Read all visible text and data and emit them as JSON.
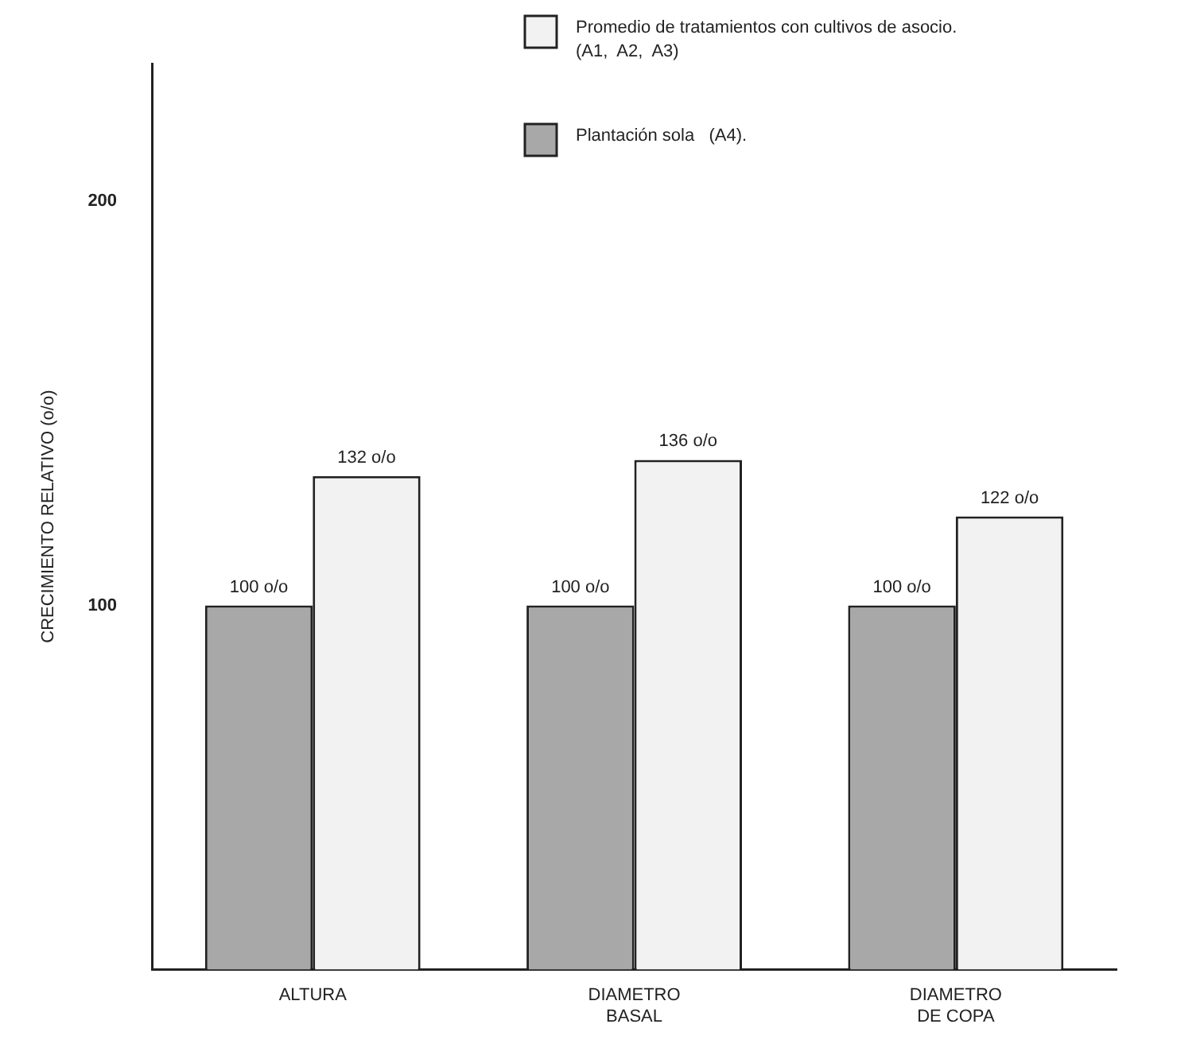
{
  "chart_data": {
    "type": "bar",
    "ylabel": "CRECIMIENTO RELATIVO (o/o)",
    "categories": [
      "ALTURA",
      "DIAMETRO\nBASAL",
      "DIAMETRO\nDE COPA"
    ],
    "series": [
      {
        "name": "Plantación sola   (A4).",
        "color": "#a8a8a8",
        "values": [
          100,
          100,
          100
        ],
        "value_labels": [
          "100 o/o",
          "100 o/o",
          "100 o/o"
        ]
      },
      {
        "name": "Promedio de tratamientos con cultivos de asocio.\n(A1,  A2,  A3)",
        "color": "#f2f2f2",
        "values": [
          132,
          136,
          122
        ],
        "value_labels": [
          "132 o/o",
          "136 o/o",
          "122 o/o"
        ]
      }
    ],
    "ylim": [
      10,
      234
    ],
    "yticks": [
      100,
      200
    ],
    "grid": false,
    "legend": "top right"
  }
}
